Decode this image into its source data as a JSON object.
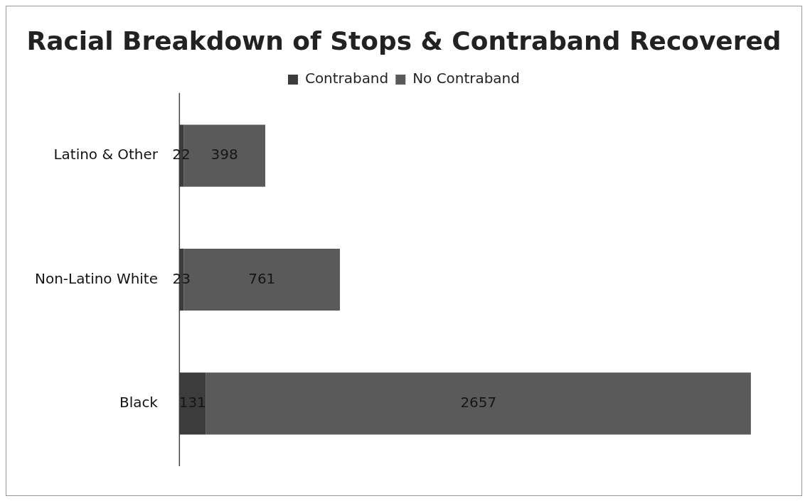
{
  "chart_data": {
    "type": "bar",
    "title": "Racial Breakdown of Stops & Contraband Recovered",
    "orientation": "horizontal",
    "stacked": true,
    "categories": [
      "Latino & Other",
      "Non-Latino White",
      "Black"
    ],
    "series": [
      {
        "name": "Contraband",
        "color": "#3c3c3c",
        "values": [
          22,
          23,
          131
        ]
      },
      {
        "name": "No Contraband",
        "color": "#5a5a5a",
        "values": [
          398,
          761,
          2657
        ]
      }
    ],
    "data_labels": true,
    "legend": "top",
    "grid": false,
    "tick_labels": "y"
  }
}
